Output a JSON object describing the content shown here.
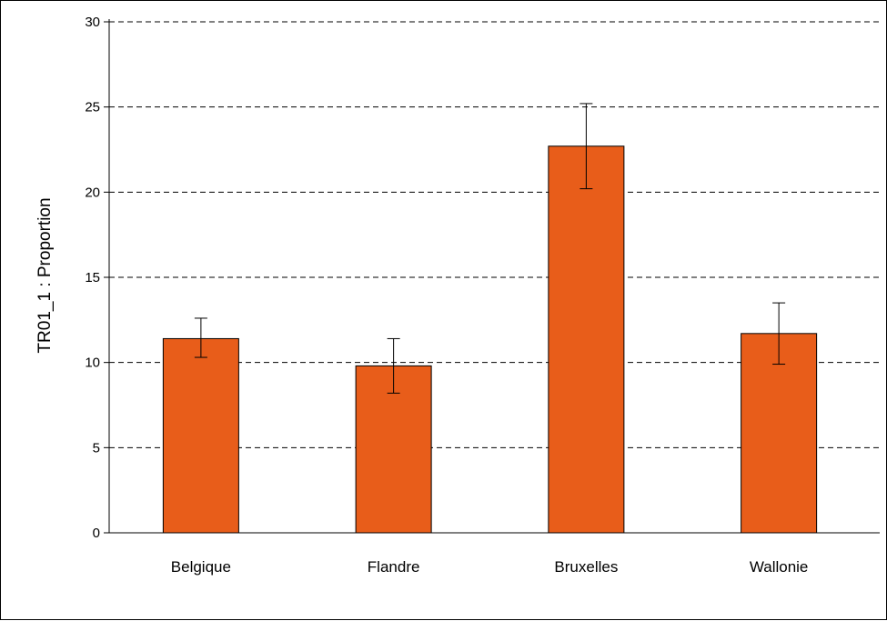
{
  "chart_data": {
    "type": "bar",
    "ylabel": "TR01_1 : Proportion",
    "xlabel": "",
    "ylim": [
      0,
      30
    ],
    "yticks": [
      0,
      5,
      10,
      15,
      20,
      25,
      30
    ],
    "grid": true,
    "categories": [
      "Belgique",
      "Flandre",
      "Bruxelles",
      "Wallonie"
    ],
    "values": [
      11.4,
      9.8,
      22.7,
      11.7
    ],
    "error_low": [
      10.3,
      8.2,
      20.2,
      9.9
    ],
    "error_high": [
      12.6,
      11.4,
      25.2,
      13.5
    ],
    "bar_color": "#E85D1A",
    "bar_edge_color": "#000000"
  }
}
